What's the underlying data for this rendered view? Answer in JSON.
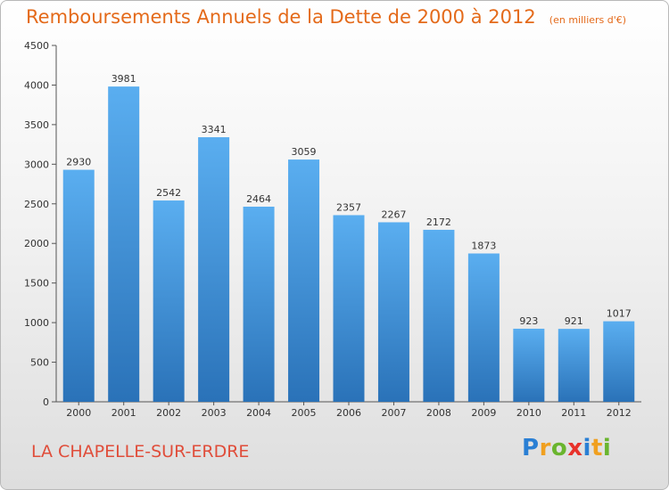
{
  "header": {
    "title": "Remboursements Annuels de la Dette de 2000 à 2012",
    "unit": "(en milliers d'€)"
  },
  "footer": {
    "commune": "LA CHAPELLE-SUR-ERDRE",
    "brand": [
      "P",
      "r",
      "o",
      "x",
      "i",
      "t",
      "i"
    ],
    "brand_colors": [
      "#2a7fd4",
      "#f0a020",
      "#6ab52e",
      "#e8322b",
      "#2a7fd4",
      "#f0a020",
      "#6ab52e"
    ]
  },
  "colors": {
    "bar_light": "#5aaef0",
    "bar_dark": "#2a72b8",
    "title": "#e46a1a",
    "commune": "#e04d3a"
  },
  "chart_data": {
    "type": "bar",
    "title": "Remboursements Annuels de la Dette de 2000 à 2012",
    "subtitle": "(en milliers d'€)",
    "categories": [
      "2000",
      "2001",
      "2002",
      "2003",
      "2004",
      "2005",
      "2006",
      "2007",
      "2008",
      "2009",
      "2010",
      "2011",
      "2012"
    ],
    "values": [
      2930,
      3981,
      2542,
      3341,
      2464,
      3059,
      2357,
      2267,
      2172,
      1873,
      923,
      921,
      1017
    ],
    "ylim": [
      0,
      4500
    ],
    "yticks": [
      0,
      500,
      1000,
      1500,
      2000,
      2500,
      3000,
      3500,
      4000,
      4500
    ],
    "grid": false,
    "xlabel": "",
    "ylabel": ""
  }
}
